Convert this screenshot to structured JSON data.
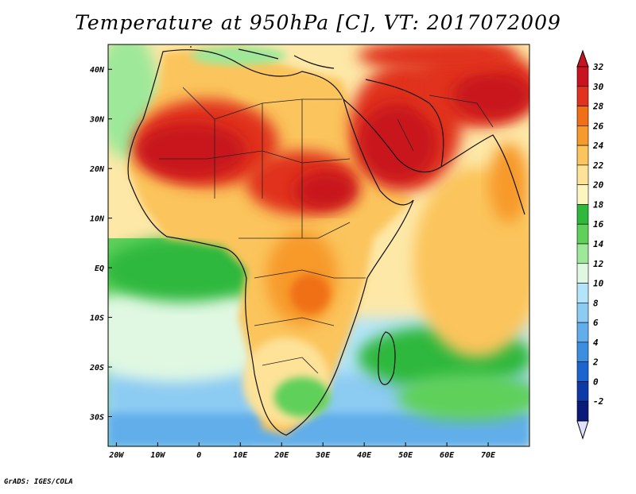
{
  "title": "Temperature at 950hPa [C], VT: 2017072009",
  "credit": "GrADS: IGES/COLA",
  "map": {
    "lon_range": [
      -22,
      80
    ],
    "lat_range": [
      -36,
      45
    ],
    "lon_ticks": [
      {
        "value": -20,
        "label": "20W"
      },
      {
        "value": -10,
        "label": "10W"
      },
      {
        "value": 0,
        "label": "0"
      },
      {
        "value": 10,
        "label": "10E"
      },
      {
        "value": 20,
        "label": "20E"
      },
      {
        "value": 30,
        "label": "30E"
      },
      {
        "value": 40,
        "label": "40E"
      },
      {
        "value": 50,
        "label": "50E"
      },
      {
        "value": 60,
        "label": "60E"
      },
      {
        "value": 70,
        "label": "70E"
      }
    ],
    "lat_ticks": [
      {
        "value": 40,
        "label": "40N"
      },
      {
        "value": 30,
        "label": "30N"
      },
      {
        "value": 20,
        "label": "20N"
      },
      {
        "value": 10,
        "label": "10N"
      },
      {
        "value": 0,
        "label": "EQ"
      },
      {
        "value": -10,
        "label": "10S"
      },
      {
        "value": -20,
        "label": "20S"
      },
      {
        "value": -30,
        "label": "30S"
      }
    ]
  },
  "colorbar": {
    "levels": [
      {
        "label": "32",
        "color": "#c8141e"
      },
      {
        "label": "30",
        "color": "#e0321e"
      },
      {
        "label": "28",
        "color": "#f07018"
      },
      {
        "label": "26",
        "color": "#f79a2c"
      },
      {
        "label": "24",
        "color": "#fbc45c"
      },
      {
        "label": "22",
        "color": "#fde298"
      },
      {
        "label": "20",
        "color": "#fdf5c0"
      },
      {
        "label": "18",
        "color": "#2eb83c"
      },
      {
        "label": "16",
        "color": "#5fd05a"
      },
      {
        "label": "14",
        "color": "#9ee89a"
      },
      {
        "label": "12",
        "color": "#e0f8e2"
      },
      {
        "label": "10",
        "color": "#b4e4fa"
      },
      {
        "label": "8",
        "color": "#8ccbf2"
      },
      {
        "label": "6",
        "color": "#62aeea"
      },
      {
        "label": "4",
        "color": "#3b8ee0"
      },
      {
        "label": "2",
        "color": "#1c64d0"
      },
      {
        "label": "0",
        "color": "#0e3aa8"
      },
      {
        "label": "-2",
        "color": "#0a1a78"
      }
    ],
    "bottom_arrow_color": "#e0e0ff"
  }
}
